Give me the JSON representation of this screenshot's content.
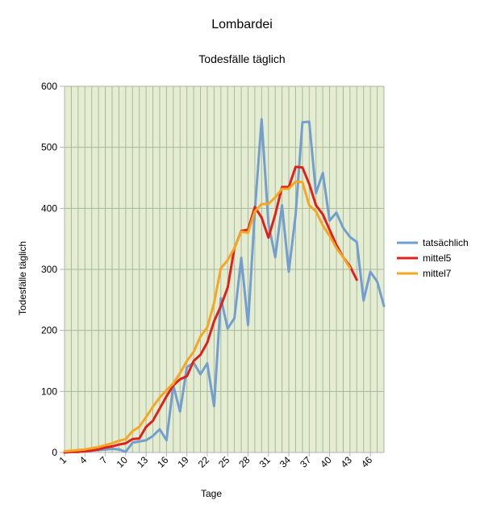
{
  "chart_data": {
    "type": "line",
    "title": "Lombardei",
    "subtitle": "Todesfälle täglich",
    "xlabel": "Tage",
    "ylabel": "Todesfälle täglich",
    "ylim": [
      0,
      600
    ],
    "y_ticks": [
      0,
      100,
      200,
      300,
      400,
      500,
      600
    ],
    "x_tick_labels": [
      "1",
      "4",
      "7",
      "10",
      "13",
      "16",
      "19",
      "22",
      "25",
      "28",
      "31",
      "34",
      "37",
      "40",
      "43",
      "46"
    ],
    "legend_position": "right",
    "grid": true,
    "colors": {
      "plot_background": "#e4edd2",
      "grid": "#a8b89c",
      "axis": "#b3b3b3"
    },
    "series": [
      {
        "name": "tatsächlich",
        "color": "#729fcf",
        "values": [
          0,
          1,
          1,
          2,
          3,
          4,
          5,
          6,
          5,
          1,
          16,
          18,
          20,
          27,
          38,
          20,
          110,
          67,
          140,
          147,
          128,
          146,
          76,
          253,
          203,
          220,
          319,
          209,
          395,
          546,
          375,
          320,
          405,
          296,
          390,
          541,
          542,
          425,
          458,
          380,
          393,
          368,
          353,
          345,
          249,
          296,
          280,
          240
        ]
      },
      {
        "name": "mittel5",
        "color": "#e0201b",
        "values": [
          0,
          1,
          1,
          2,
          3,
          5,
          8,
          10,
          13,
          15,
          22,
          23,
          42,
          52,
          72,
          92,
          110,
          120,
          125,
          150,
          160,
          180,
          215,
          240,
          270,
          335,
          363,
          365,
          402,
          385,
          352,
          390,
          435,
          435,
          468,
          467,
          440,
          405,
          390,
          365,
          340,
          320,
          305,
          283
        ]
      },
      {
        "name": "mittel7",
        "color": "#f5a623",
        "values": [
          2,
          3,
          4,
          5,
          7,
          9,
          12,
          15,
          19,
          22,
          35,
          42,
          58,
          75,
          90,
          102,
          113,
          130,
          150,
          165,
          190,
          205,
          245,
          302,
          315,
          335,
          362,
          360,
          395,
          407,
          407,
          418,
          432,
          432,
          444,
          443,
          405,
          395,
          372,
          355,
          335,
          320,
          302
        ]
      }
    ]
  }
}
